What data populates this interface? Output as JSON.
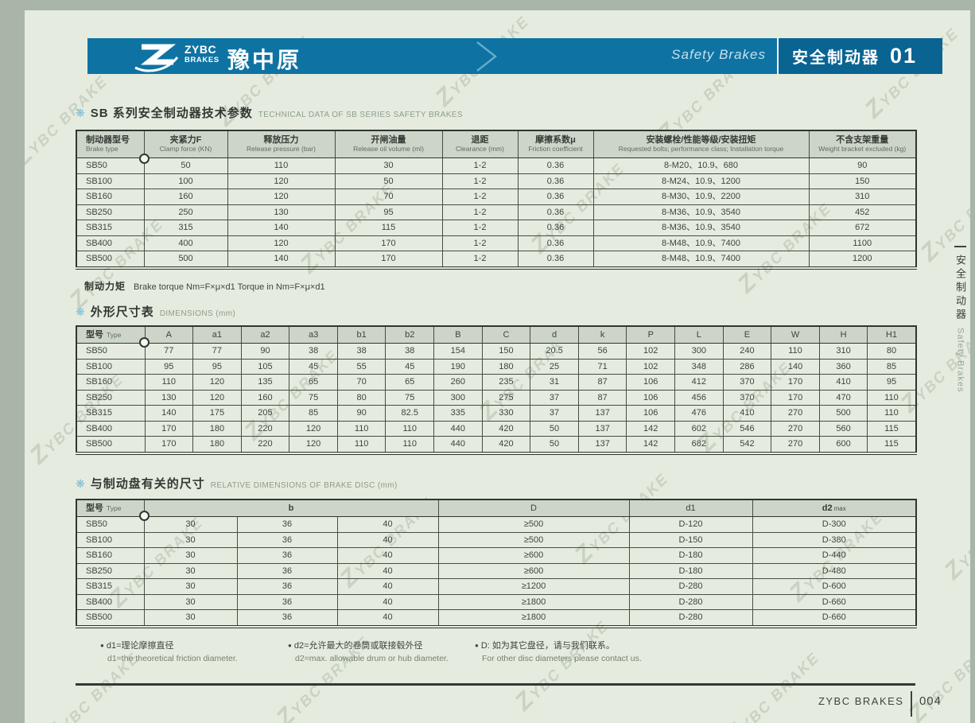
{
  "marks": {
    "star": "❋",
    "bullet": "●"
  },
  "colors": {
    "bar_blue": "#0e73a3",
    "bar_blue_dark": "#0a6492",
    "page_bg": "#e5ecdf",
    "margin_bg": "#a9b5a8",
    "header_cell_bg": "#ccd5c8"
  },
  "header": {
    "logo_line1": "ZYBC",
    "logo_line2": "BRAKES",
    "brand": "豫中原",
    "right_en": "Safety Brakes",
    "right_zh": "安全制动器",
    "page_badge": "01"
  },
  "table1": {
    "title_zh": "SB 系列安全制动器技术参数",
    "title_en": "TECHNICAL DATA OF SB SERIES SAFETY BRAKES",
    "columns": [
      {
        "zh": "制动器型号",
        "en": "Brake type"
      },
      {
        "zh": "夹紧力F",
        "en": "Clamp force (KN)"
      },
      {
        "zh": "释放压力",
        "en": "Release pressure (bar)"
      },
      {
        "zh": "开闸油量",
        "en": "Release oil volume (ml)"
      },
      {
        "zh": "退距",
        "en": "Clearance (mm)"
      },
      {
        "zh": "摩擦系数μ",
        "en": "Friction coefficient"
      },
      {
        "zh": "安装螺栓/性能等级/安装扭矩",
        "en": "Requested bolts;  performance class;  Installation torque"
      },
      {
        "zh": "不含支架重量",
        "en": "Weight bracket excluded (kg)"
      }
    ],
    "rows": [
      [
        "SB50",
        "50",
        "110",
        "30",
        "1-2",
        "0.36",
        "8-M20、10.9、680",
        "90"
      ],
      [
        "SB100",
        "100",
        "120",
        "50",
        "1-2",
        "0.36",
        "8-M24、10.9、1200",
        "150"
      ],
      [
        "SB160",
        "160",
        "120",
        "70",
        "1-2",
        "0.36",
        "8-M30、10.9、2200",
        "310"
      ],
      [
        "SB250",
        "250",
        "130",
        "95",
        "1-2",
        "0.36",
        "8-M36、10.9、3540",
        "452"
      ],
      [
        "SB315",
        "315",
        "140",
        "115",
        "1-2",
        "0.36",
        "8-M36、10.9、3540",
        "672"
      ],
      [
        "SB400",
        "400",
        "120",
        "170",
        "1-2",
        "0.36",
        "8-M48、10.9、7400",
        "1100"
      ],
      [
        "SB500",
        "500",
        "140",
        "170",
        "1-2",
        "0.36",
        "8-M48、10.9、7400",
        "1200"
      ]
    ]
  },
  "torque_note": {
    "bold": "制动力矩",
    "text": "Brake torque  Nm=F×μ×d1  Torque in Nm=F×μ×d1"
  },
  "table2": {
    "title_zh": "外形尺寸表",
    "title_en": "DIMENSIONS (mm)",
    "first_col": {
      "zh": "型号",
      "en": "Type"
    },
    "dim_headers": [
      "A",
      "a1",
      "a2",
      "a3",
      "b1",
      "b2",
      "B",
      "C",
      "d",
      "k",
      "P",
      "L",
      "E",
      "W",
      "H",
      "H1"
    ],
    "rows": [
      [
        "SB50",
        "77",
        "77",
        "90",
        "38",
        "38",
        "38",
        "154",
        "150",
        "20.5",
        "56",
        "102",
        "300",
        "240",
        "110",
        "310",
        "80"
      ],
      [
        "SB100",
        "95",
        "95",
        "105",
        "45",
        "55",
        "45",
        "190",
        "180",
        "25",
        "71",
        "102",
        "348",
        "286",
        "140",
        "360",
        "85"
      ],
      [
        "SB160",
        "110",
        "120",
        "135",
        "65",
        "70",
        "65",
        "260",
        "235",
        "31",
        "87",
        "106",
        "412",
        "370",
        "170",
        "410",
        "95"
      ],
      [
        "SB250",
        "130",
        "120",
        "160",
        "75",
        "80",
        "75",
        "300",
        "275",
        "37",
        "87",
        "106",
        "456",
        "370",
        "170",
        "470",
        "110"
      ],
      [
        "SB315",
        "140",
        "175",
        "205",
        "85",
        "90",
        "82.5",
        "335",
        "330",
        "37",
        "137",
        "106",
        "476",
        "410",
        "270",
        "500",
        "110"
      ],
      [
        "SB400",
        "170",
        "180",
        "220",
        "120",
        "110",
        "110",
        "440",
        "420",
        "50",
        "137",
        "142",
        "602",
        "546",
        "270",
        "560",
        "115"
      ],
      [
        "SB500",
        "170",
        "180",
        "220",
        "120",
        "110",
        "110",
        "440",
        "420",
        "50",
        "137",
        "142",
        "682",
        "542",
        "270",
        "600",
        "115"
      ]
    ]
  },
  "table3": {
    "title_zh": "与制动盘有关的尺寸",
    "title_en": "RELATIVE DIMENSIONS OF BRAKE DISC (mm)",
    "first_col": {
      "zh": "型号",
      "en": "Type"
    },
    "col_b": "b",
    "col_D": "D",
    "col_d1": "d1",
    "col_d2": "d2",
    "col_d2_sub": "max",
    "rows": [
      [
        "SB50",
        "30",
        "36",
        "40",
        "≥500",
        "D-120",
        "D-300"
      ],
      [
        "SB100",
        "30",
        "36",
        "40",
        "≥500",
        "D-150",
        "D-380"
      ],
      [
        "SB160",
        "30",
        "36",
        "40",
        "≥600",
        "D-180",
        "D-440"
      ],
      [
        "SB250",
        "30",
        "36",
        "40",
        "≥600",
        "D-180",
        "D-480"
      ],
      [
        "SB315",
        "30",
        "36",
        "40",
        "≥1200",
        "D-280",
        "D-600"
      ],
      [
        "SB400",
        "30",
        "36",
        "40",
        "≥1800",
        "D-280",
        "D-660"
      ],
      [
        "SB500",
        "30",
        "36",
        "40",
        "≥1800",
        "D-280",
        "D-660"
      ]
    ]
  },
  "footnotes": [
    {
      "zh": "d1=理论摩擦直径",
      "en": "d1=the theoretical friction diameter."
    },
    {
      "zh": "d2=允许最大的卷筒或联接毂外径",
      "en": "d2=max. allowable drum or hub diameter."
    },
    {
      "zh": "D: 如为其它盘径，请与我们联系。",
      "en": "For other disc diameters please contact us."
    }
  ],
  "sidebar": {
    "zh": "安全制动器",
    "en": "Safety Brakes"
  },
  "footer": {
    "brand": "ZYBC BRAKES",
    "page": "004"
  },
  "watermark": {
    "text": "ZYBC BRAKE"
  }
}
